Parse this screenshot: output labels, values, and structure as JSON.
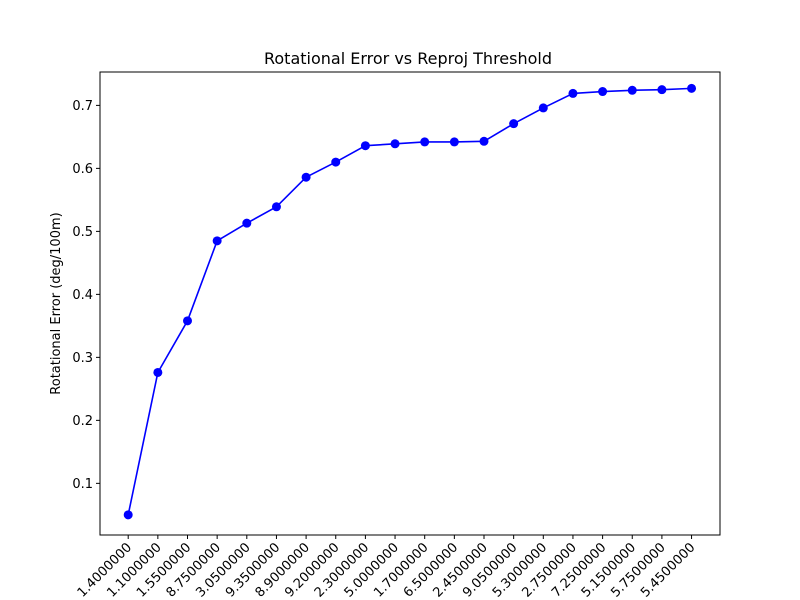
{
  "chart_data": {
    "type": "line",
    "title": "Rotational Error vs Reproj Threshold",
    "xlabel": "",
    "ylabel": "Rotational Error (deg/100m)",
    "categories": [
      "1.4000000",
      "1.1000000",
      "1.5500000",
      "8.7500000",
      "3.0500000",
      "9.3500000",
      "8.9000000",
      "9.2000000",
      "2.3000000",
      "5.0000000",
      "1.7000000",
      "6.5000000",
      "2.4500000",
      "9.0500000",
      "5.3000000",
      "2.7500000",
      "7.2500000",
      "5.1500000",
      "5.7500000",
      "5.4500000"
    ],
    "series": [
      {
        "name": "",
        "color": "#0000ff",
        "values": [
          0.05,
          0.276,
          0.358,
          0.485,
          0.513,
          0.539,
          0.586,
          0.61,
          0.636,
          0.639,
          0.642,
          0.642,
          0.643,
          0.671,
          0.696,
          0.719,
          0.722,
          0.724,
          0.725,
          0.727
        ]
      }
    ],
    "ylim": [
      0.018,
      0.753
    ],
    "yticks": [
      0.1,
      0.2,
      0.3,
      0.4,
      0.5,
      0.6,
      0.7
    ],
    "ytick_labels": [
      "0.1",
      "0.2",
      "0.3",
      "0.4",
      "0.5",
      "0.6",
      "0.7"
    ],
    "grid": false,
    "legend": "none",
    "marker": "circle"
  }
}
